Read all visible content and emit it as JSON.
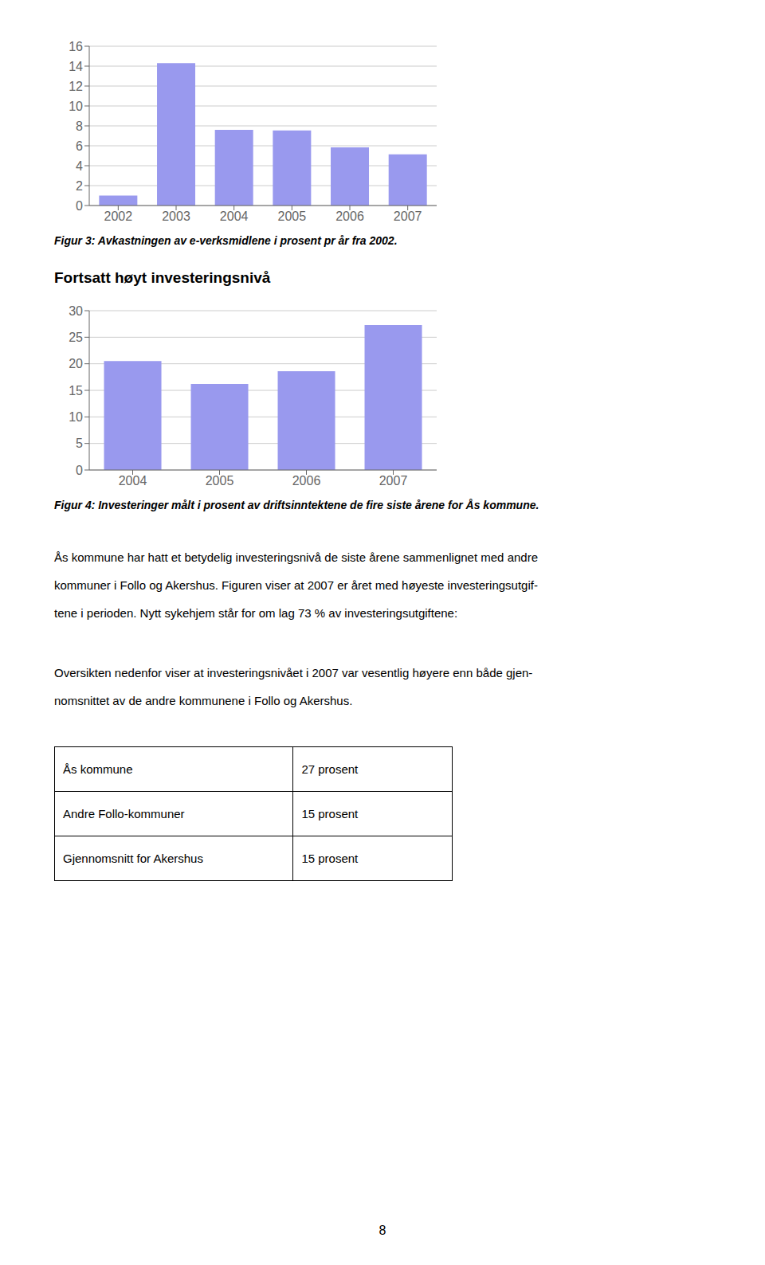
{
  "chart_data": [
    {
      "type": "bar",
      "title": "Figur 3: Avkastningen av e-verksmidlene i prosent pr år fra 2002.",
      "categories": [
        "2002",
        "2003",
        "2004",
        "2005",
        "2006",
        "2007"
      ],
      "values": [
        1.0,
        14.3,
        7.6,
        7.55,
        5.85,
        5.15
      ],
      "color": "#9999ee",
      "ylim": [
        0,
        16
      ],
      "yticks": [
        0,
        2,
        4,
        6,
        8,
        10,
        12,
        14,
        16
      ],
      "grid": true
    },
    {
      "type": "bar",
      "title": "Figur 4: Investeringer målt i prosent av driftsinntektene de fire siste årene for Ås kommune.",
      "categories": [
        "2004",
        "2005",
        "2006",
        "2007"
      ],
      "values": [
        20.5,
        16.2,
        18.6,
        27.3
      ],
      "color": "#9999ee",
      "ylim": [
        0,
        30
      ],
      "yticks": [
        0,
        5,
        10,
        15,
        20,
        25,
        30
      ],
      "grid": true
    }
  ],
  "section_title": "Fortsatt høyt investeringsnivå",
  "body_text": [
    [
      "Ås kommune har hatt et betydelig investeringsnivå de siste årene sammenlignet med andre",
      "kommuner i Follo og Akershus. Figuren viser at 2007 er året med høyeste investeringsutgif-",
      "tene i perioden. Nytt sykehjem står for om lag 73 % av investeringsutgiftene:"
    ],
    [
      "Oversikten nedenfor viser at investeringsnivået i 2007 var vesentlig høyere enn både gjen-",
      "nomsnittet av de andre kommunene i Follo og Akershus."
    ]
  ],
  "table": [
    [
      "Ås kommune",
      "27 prosent"
    ],
    [
      "Andre Follo-kommuner",
      "15 prosent"
    ],
    [
      "Gjennomsnitt for Akershus",
      "15 prosent"
    ]
  ],
  "page_number": "8"
}
